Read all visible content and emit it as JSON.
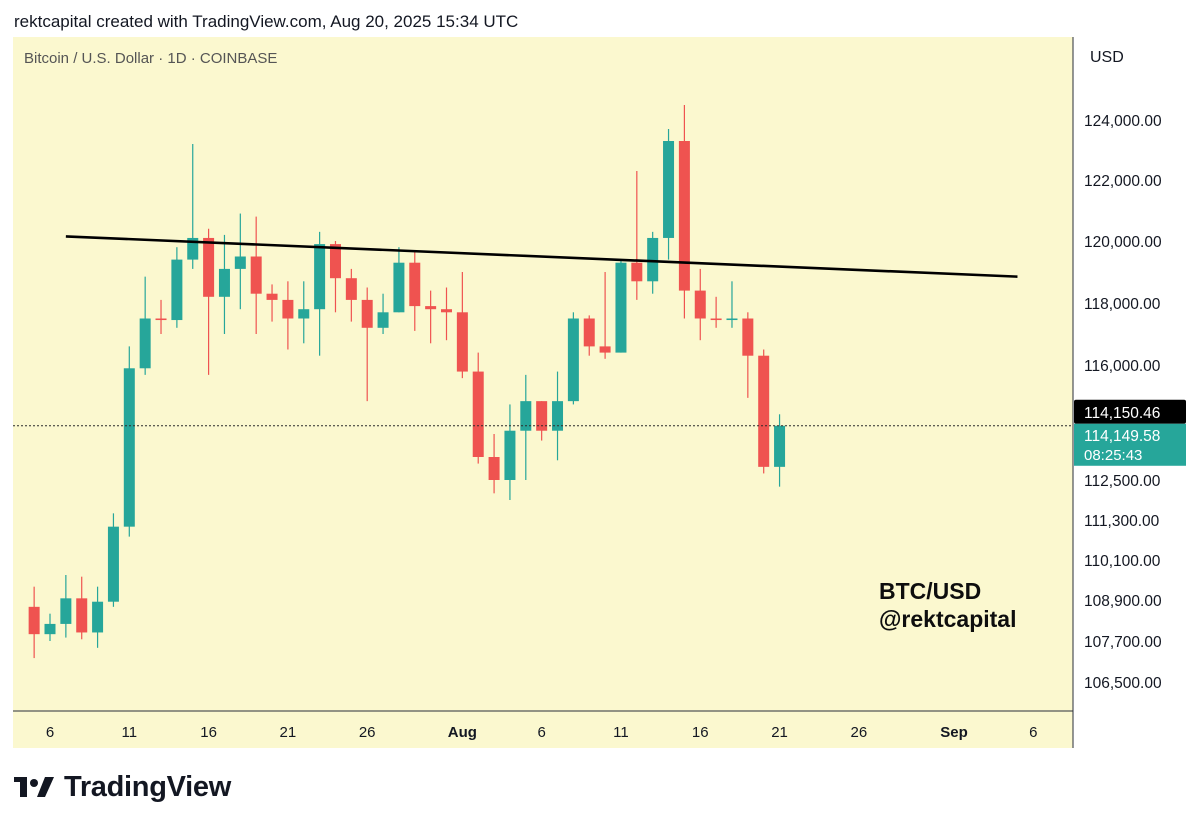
{
  "caption": "rektcapital created with TradingView.com, Aug 20, 2025 15:34 UTC",
  "brand": "TradingView",
  "colors": {
    "background": "#fbf8cf",
    "bullish": "#26a69a",
    "bearish": "#ef5350",
    "trendline": "#000000",
    "last_price_label": "#000000",
    "countdown_label": "#26a69a"
  },
  "chart_data": {
    "type": "candlestick",
    "title": "Bitcoin / U.S. Dollar · 1D · COINBASE",
    "currency": "USD",
    "watermark": [
      "BTC/USD",
      "@rektcapital"
    ],
    "y_ticks": [
      "124,000.00",
      "122,000.00",
      "120,000.00",
      "118,000.00",
      "116,000.00",
      "112,500.00",
      "111,300.00",
      "110,100.00",
      "108,900.00",
      "107,700.00",
      "106,500.00"
    ],
    "x_ticks": [
      "6",
      "11",
      "16",
      "21",
      "26",
      "Aug",
      "6",
      "11",
      "16",
      "21",
      "26",
      "Sep",
      "6"
    ],
    "last_price": "114,150.46",
    "current_price": "114,149.58",
    "countdown": "08:25:43",
    "grid": false,
    "series": [
      {
        "date": "2025-07-05",
        "open": 108700,
        "high": 109300,
        "low": 107200,
        "close": 107900
      },
      {
        "date": "2025-07-06",
        "open": 107900,
        "high": 108500,
        "low": 107700,
        "close": 108200
      },
      {
        "date": "2025-07-07",
        "open": 108200,
        "high": 109650,
        "low": 107800,
        "close": 108950
      },
      {
        "date": "2025-07-08",
        "open": 108950,
        "high": 109600,
        "low": 107750,
        "close": 107950
      },
      {
        "date": "2025-07-09",
        "open": 107950,
        "high": 109300,
        "low": 107500,
        "close": 108850
      },
      {
        "date": "2025-07-10",
        "open": 108850,
        "high": 111500,
        "low": 108700,
        "close": 111100
      },
      {
        "date": "2025-07-11",
        "open": 111100,
        "high": 116600,
        "low": 110800,
        "close": 115900
      },
      {
        "date": "2025-07-12",
        "open": 115900,
        "high": 118850,
        "low": 115700,
        "close": 117500
      },
      {
        "date": "2025-07-13",
        "open": 117500,
        "high": 118100,
        "low": 117000,
        "close": 117450
      },
      {
        "date": "2025-07-14",
        "open": 117450,
        "high": 119800,
        "low": 117200,
        "close": 119400
      },
      {
        "date": "2025-07-15",
        "open": 119400,
        "high": 123200,
        "low": 119100,
        "close": 120100
      },
      {
        "date": "2025-07-16",
        "open": 120100,
        "high": 120400,
        "low": 115700,
        "close": 118200
      },
      {
        "date": "2025-07-17",
        "open": 118200,
        "high": 120200,
        "low": 117000,
        "close": 119100
      },
      {
        "date": "2025-07-18",
        "open": 119100,
        "high": 120900,
        "low": 117800,
        "close": 119500
      },
      {
        "date": "2025-07-19",
        "open": 119500,
        "high": 120800,
        "low": 117000,
        "close": 118300
      },
      {
        "date": "2025-07-20",
        "open": 118300,
        "high": 118600,
        "low": 117400,
        "close": 118100
      },
      {
        "date": "2025-07-21",
        "open": 118100,
        "high": 118700,
        "low": 116500,
        "close": 117500
      },
      {
        "date": "2025-07-22",
        "open": 117500,
        "high": 118700,
        "low": 116700,
        "close": 117800
      },
      {
        "date": "2025-07-23",
        "open": 117800,
        "high": 120300,
        "low": 116300,
        "close": 119900
      },
      {
        "date": "2025-07-24",
        "open": 119900,
        "high": 120000,
        "low": 117700,
        "close": 118800
      },
      {
        "date": "2025-07-25",
        "open": 118800,
        "high": 119100,
        "low": 117400,
        "close": 118100
      },
      {
        "date": "2025-07-26",
        "open": 118100,
        "high": 118500,
        "low": 114900,
        "close": 117200
      },
      {
        "date": "2025-07-27",
        "open": 117200,
        "high": 118300,
        "low": 117000,
        "close": 117700
      },
      {
        "date": "2025-07-28",
        "open": 117700,
        "high": 119800,
        "low": 117700,
        "close": 119300
      },
      {
        "date": "2025-07-29",
        "open": 119300,
        "high": 119700,
        "low": 117100,
        "close": 117900
      },
      {
        "date": "2025-07-30",
        "open": 117900,
        "high": 118400,
        "low": 116700,
        "close": 117800
      },
      {
        "date": "2025-07-31",
        "open": 117800,
        "high": 118500,
        "low": 116800,
        "close": 117700
      },
      {
        "date": "2025-08-01",
        "open": 117700,
        "high": 119000,
        "low": 115600,
        "close": 115800
      },
      {
        "date": "2025-08-02",
        "open": 115800,
        "high": 116400,
        "low": 113000,
        "close": 113200
      },
      {
        "date": "2025-08-03",
        "open": 113200,
        "high": 113900,
        "low": 112100,
        "close": 112500
      },
      {
        "date": "2025-08-04",
        "open": 112500,
        "high": 114800,
        "low": 111900,
        "close": 114000
      },
      {
        "date": "2025-08-05",
        "open": 114000,
        "high": 115700,
        "low": 112500,
        "close": 114900
      },
      {
        "date": "2025-08-06",
        "open": 114900,
        "high": 114900,
        "low": 113700,
        "close": 114000
      },
      {
        "date": "2025-08-07",
        "open": 114000,
        "high": 115800,
        "low": 113100,
        "close": 114900
      },
      {
        "date": "2025-08-08",
        "open": 114900,
        "high": 117700,
        "low": 114800,
        "close": 117500
      },
      {
        "date": "2025-08-09",
        "open": 117500,
        "high": 117600,
        "low": 116300,
        "close": 116600
      },
      {
        "date": "2025-08-10",
        "open": 116600,
        "high": 119000,
        "low": 116200,
        "close": 116400
      },
      {
        "date": "2025-08-11",
        "open": 116400,
        "high": 119400,
        "low": 116400,
        "close": 119300
      },
      {
        "date": "2025-08-12",
        "open": 119300,
        "high": 122300,
        "low": 118100,
        "close": 118700
      },
      {
        "date": "2025-08-13",
        "open": 118700,
        "high": 120300,
        "low": 118300,
        "close": 120100
      },
      {
        "date": "2025-08-14",
        "open": 120100,
        "high": 123700,
        "low": 119400,
        "close": 123300
      },
      {
        "date": "2025-08-15",
        "open": 123300,
        "high": 124500,
        "low": 117500,
        "close": 118400
      },
      {
        "date": "2025-08-16",
        "open": 118400,
        "high": 119100,
        "low": 116800,
        "close": 117500
      },
      {
        "date": "2025-08-17",
        "open": 117500,
        "high": 118200,
        "low": 117200,
        "close": 117450
      },
      {
        "date": "2025-08-18",
        "open": 117450,
        "high": 118700,
        "low": 117200,
        "close": 117500
      },
      {
        "date": "2025-08-19",
        "open": 117500,
        "high": 117700,
        "low": 115000,
        "close": 116300
      },
      {
        "date": "2025-08-20",
        "open": 116300,
        "high": 116500,
        "low": 112700,
        "close": 112900
      },
      {
        "date": "2025-08-21",
        "open": 112900,
        "high": 114500,
        "low": 112300,
        "close": 114149.58
      }
    ],
    "trendline": {
      "start": {
        "date": "2025-07-07",
        "price": 120150
      },
      "end": {
        "date": "2025-09-05",
        "price": 118850
      }
    }
  }
}
